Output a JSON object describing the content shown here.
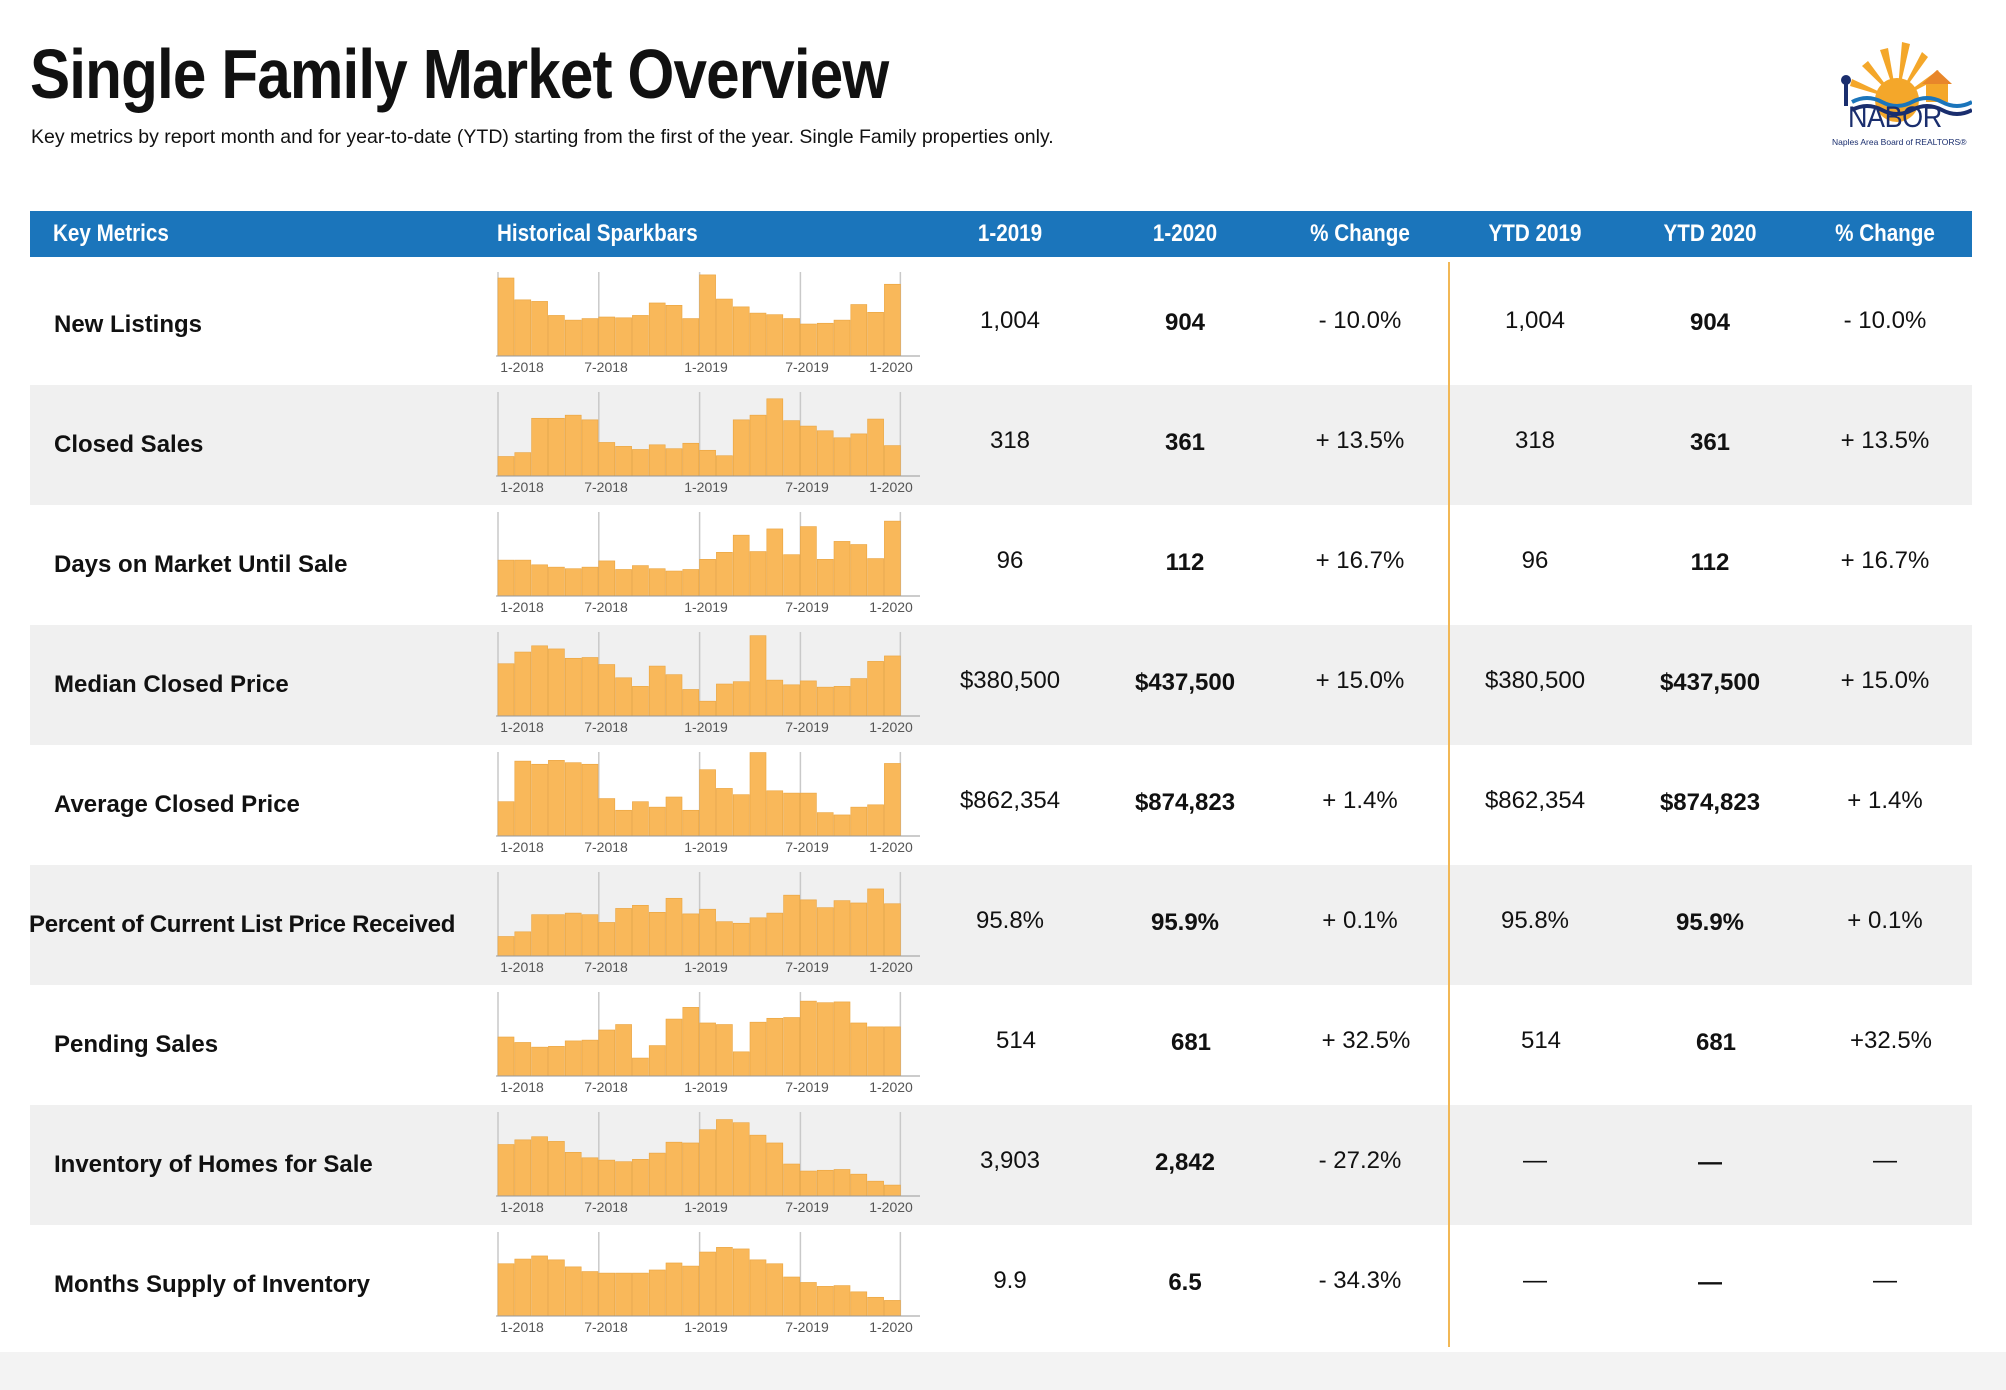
{
  "title": "Single Family Market Overview",
  "subtitle": "Key metrics by report month and for year-to-date (YTD) starting from the first of the year. Single Family properties only.",
  "logo": {
    "word": "NABOR",
    "sub": "Naples Area Board of REALTORS®",
    "icon": "sun-waves-house-logo-icon"
  },
  "colors": {
    "header": "#1b75bb",
    "bar": "#f9b85a",
    "bar_edge": "#e9a33e",
    "divider": "#f2b856",
    "shade": "#f0f0f0"
  },
  "headers": {
    "key_metrics": "Key Metrics",
    "sparkbars": "Historical Sparkbars",
    "m2019": "1-2019",
    "m2020": "1-2020",
    "pct_change": "% Change",
    "ytd2019": "YTD 2019",
    "ytd2020": "YTD 2020",
    "ytd_pct_change": "% Change"
  },
  "spark_axis_labels": [
    "1-2018",
    "7-2018",
    "1-2019",
    "7-2019",
    "1-2020"
  ],
  "rows": [
    {
      "metric": "New Listings",
      "m2019": "1,004",
      "m2020": "904",
      "pct": "- 10.0%",
      "ytd2019": "1,004",
      "ytd2020": "904",
      "ytdpct": "- 10.0%",
      "spark": [
        1.0,
        0.72,
        0.7,
        0.52,
        0.46,
        0.48,
        0.5,
        0.49,
        0.52,
        0.68,
        0.65,
        0.48,
        1.04,
        0.73,
        0.63,
        0.55,
        0.53,
        0.48,
        0.41,
        0.42,
        0.46,
        0.66,
        0.56,
        0.92
      ]
    },
    {
      "metric": "Closed Sales",
      "m2019": "318",
      "m2020": "361",
      "pct": "+ 13.5%",
      "ytd2019": "318",
      "ytd2020": "361",
      "ytdpct": "+ 13.5%",
      "spark": [
        0.25,
        0.3,
        0.74,
        0.74,
        0.78,
        0.72,
        0.43,
        0.38,
        0.34,
        0.4,
        0.35,
        0.42,
        0.33,
        0.26,
        0.72,
        0.78,
        0.99,
        0.71,
        0.64,
        0.58,
        0.49,
        0.54,
        0.73,
        0.39
      ]
    },
    {
      "metric": "Days on Market Until Sale",
      "m2019": "96",
      "m2020": "112",
      "pct": "+ 16.7%",
      "ytd2019": "96",
      "ytd2020": "112",
      "ytdpct": "+ 16.7%",
      "spark": [
        0.46,
        0.46,
        0.4,
        0.37,
        0.35,
        0.37,
        0.45,
        0.34,
        0.39,
        0.35,
        0.32,
        0.34,
        0.47,
        0.56,
        0.78,
        0.57,
        0.86,
        0.53,
        0.89,
        0.47,
        0.7,
        0.66,
        0.48,
        0.96
      ]
    },
    {
      "metric": "Median Closed Price",
      "m2019": "$380,500",
      "m2020": "$437,500",
      "pct": "+ 15.0%",
      "ytd2019": "$380,500",
      "ytd2020": "$437,500",
      "ytdpct": "+ 15.0%",
      "spark": [
        0.67,
        0.82,
        0.9,
        0.86,
        0.74,
        0.75,
        0.66,
        0.49,
        0.38,
        0.64,
        0.53,
        0.34,
        0.19,
        0.41,
        0.44,
        1.03,
        0.46,
        0.4,
        0.45,
        0.37,
        0.38,
        0.48,
        0.7,
        0.77
      ]
    },
    {
      "metric": "Average Closed Price",
      "m2019": "$862,354",
      "m2020": "$874,823",
      "pct": "+ 1.4%",
      "ytd2019": "$862,354",
      "ytd2020": "$874,823",
      "ytdpct": "+ 1.4%",
      "spark": [
        0.44,
        0.96,
        0.92,
        0.97,
        0.94,
        0.92,
        0.48,
        0.33,
        0.44,
        0.37,
        0.5,
        0.33,
        0.85,
        0.61,
        0.53,
        1.07,
        0.58,
        0.55,
        0.55,
        0.3,
        0.27,
        0.37,
        0.4,
        0.93
      ]
    },
    {
      "metric": "Percent of Current List Price Received",
      "m2019": "95.8%",
      "m2020": "95.9%",
      "pct": "+ 0.1%",
      "ytd2019": "95.8%",
      "ytd2020": "95.9%",
      "ytdpct": "+ 0.1%",
      "spark": [
        0.25,
        0.31,
        0.53,
        0.53,
        0.55,
        0.53,
        0.43,
        0.61,
        0.65,
        0.56,
        0.74,
        0.54,
        0.6,
        0.44,
        0.42,
        0.49,
        0.55,
        0.78,
        0.72,
        0.62,
        0.71,
        0.68,
        0.86,
        0.67
      ]
    },
    {
      "metric": "Pending Sales",
      "m2019": "514",
      "m2020": "681",
      "pct": "+ 32.5%",
      "ytd2019": "514",
      "ytd2020": "681",
      "ytdpct": "+32.5%",
      "spark": [
        0.5,
        0.43,
        0.37,
        0.38,
        0.45,
        0.46,
        0.59,
        0.66,
        0.23,
        0.39,
        0.73,
        0.88,
        0.68,
        0.66,
        0.31,
        0.69,
        0.74,
        0.75,
        0.96,
        0.94,
        0.95,
        0.68,
        0.63,
        0.63
      ]
    },
    {
      "metric": "Inventory of Homes for Sale",
      "m2019": "3,903",
      "m2020": "2,842",
      "pct": "- 27.2%",
      "ytd2019": "—",
      "ytd2020": "—",
      "ytdpct": "—",
      "spark": [
        0.66,
        0.72,
        0.76,
        0.7,
        0.56,
        0.49,
        0.46,
        0.44,
        0.47,
        0.55,
        0.69,
        0.68,
        0.85,
        0.98,
        0.94,
        0.78,
        0.68,
        0.41,
        0.32,
        0.33,
        0.34,
        0.28,
        0.19,
        0.14
      ]
    },
    {
      "metric": "Months Supply of Inventory",
      "m2019": "9.9",
      "m2020": "6.5",
      "pct": "- 34.3%",
      "ytd2019": "—",
      "ytd2020": "—",
      "ytdpct": "—",
      "spark": [
        0.67,
        0.73,
        0.77,
        0.72,
        0.63,
        0.57,
        0.55,
        0.55,
        0.55,
        0.59,
        0.68,
        0.64,
        0.82,
        0.88,
        0.86,
        0.72,
        0.67,
        0.5,
        0.43,
        0.38,
        0.39,
        0.31,
        0.24,
        0.2
      ]
    }
  ]
}
